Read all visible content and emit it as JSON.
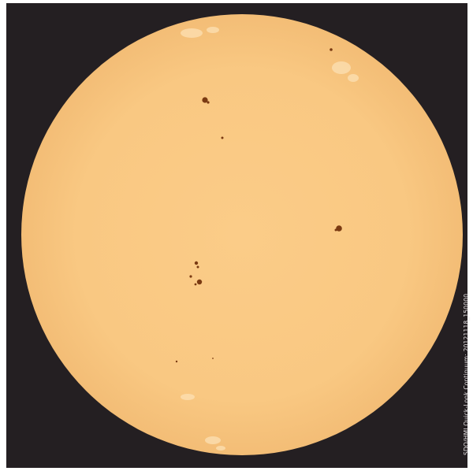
{
  "caption": "SDO/HMI Quick-Look Continuum: 20121118_150000",
  "colors": {
    "background": "#241f22",
    "disk": "#f9c882",
    "disk_edge": "#f3bd76",
    "sunspot": "#7a3a12",
    "faculae": "#fde3b8"
  }
}
